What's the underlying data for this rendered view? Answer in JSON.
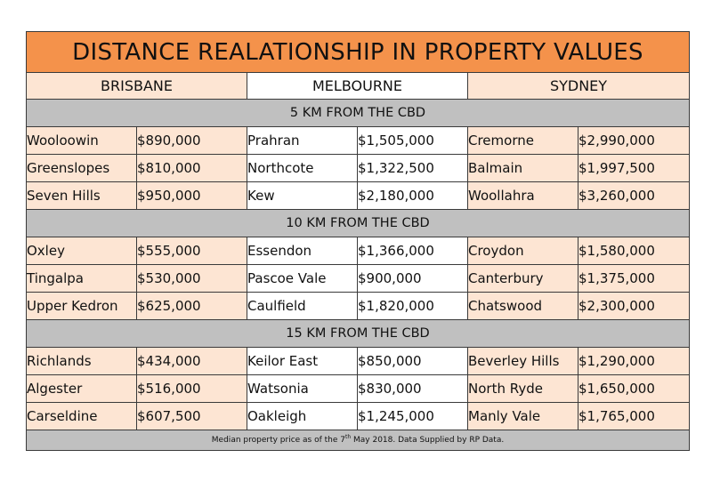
{
  "title": "DISTANCE REALATIONSHIP IN PROPERTY VALUES",
  "cities": [
    "BRISBANE",
    "MELBOURNE",
    "SYDNEY"
  ],
  "sections": [
    {
      "label": "5 KM FROM THE CBD",
      "rows": [
        [
          "Wooloowin",
          "$890,000",
          "Prahran",
          "$1,505,000",
          "Cremorne",
          "$2,990,000"
        ],
        [
          "Greenslopes",
          "$810,000",
          "Northcote",
          "$1,322,500",
          "Balmain",
          "$1,997,500"
        ],
        [
          "Seven Hills",
          "$950,000",
          "Kew",
          "$2,180,000",
          "Woollahra",
          "$3,260,000"
        ]
      ]
    },
    {
      "label": "10 KM FROM THE CBD",
      "rows": [
        [
          "Oxley",
          "$555,000",
          "Essendon",
          "$1,366,000",
          "Croydon",
          "$1,580,000"
        ],
        [
          "Tingalpa",
          "$530,000",
          "Pascoe Vale",
          "$900,000",
          "Canterbury",
          "$1,375,000"
        ],
        [
          "Upper Kedron",
          "$625,000",
          "Caulfield",
          "$1,820,000",
          "Chatswood",
          "$2,300,000"
        ]
      ]
    },
    {
      "label": "15 KM FROM THE CBD",
      "rows": [
        [
          "Richlands",
          "$434,000",
          "Keilor East",
          "$850,000",
          "Beverley Hills",
          "$1,290,000"
        ],
        [
          "Algester",
          "$516,000",
          "Watsonia",
          "$830,000",
          "North Ryde",
          "$1,650,000"
        ],
        [
          "Carseldine",
          "$607,500",
          "Oakleigh",
          "$1,245,000",
          "Manly Vale",
          "$1,765,000"
        ]
      ]
    }
  ],
  "footnote": {
    "before": "Median property price as of the 7",
    "sup": "th",
    "after": " May 2018. Data Supplied by RP Data."
  },
  "colors": {
    "title_bg": "#f4924b",
    "peach": "#fde5d3",
    "section_bg": "#c0c0c0"
  }
}
